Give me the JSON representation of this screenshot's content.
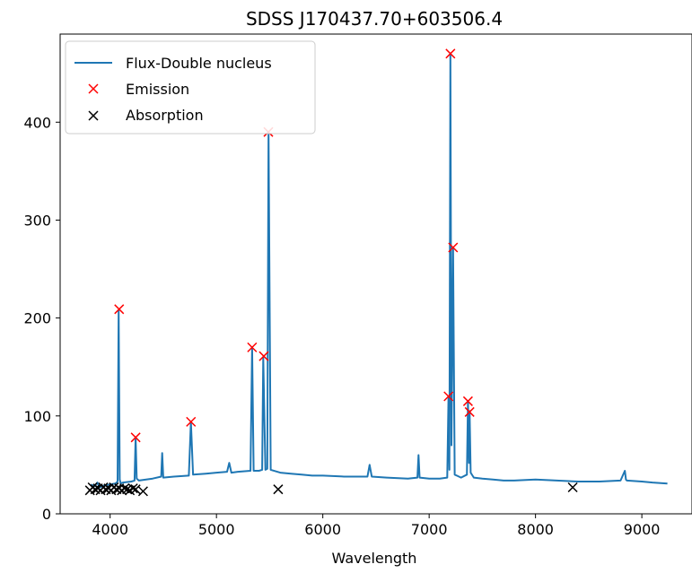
{
  "chart_data": {
    "type": "line",
    "title": "SDSS J170437.70+603506.4",
    "xlabel": "Wavelength",
    "ylabel": "",
    "xlim": [
      3530,
      9480
    ],
    "ylim": [
      0,
      490
    ],
    "xticks": [
      4000,
      5000,
      6000,
      7000,
      8000,
      9000
    ],
    "yticks": [
      0,
      100,
      200,
      300,
      400
    ],
    "legend_position": "top-left",
    "colors": {
      "flux": "#1f77b4",
      "emission": "#ff0000",
      "absorption": "#000000"
    },
    "series": [
      {
        "name": "Flux-Double nucleus",
        "kind": "line",
        "x": [
          3820,
          3850,
          3880,
          3900,
          3950,
          4000,
          4050,
          4070,
          4080,
          4090,
          4100,
          4120,
          4200,
          4230,
          4240,
          4250,
          4270,
          4400,
          4480,
          4490,
          4500,
          4600,
          4740,
          4760,
          4780,
          4900,
          5000,
          5100,
          5120,
          5140,
          5200,
          5320,
          5335,
          5350,
          5400,
          5430,
          5440,
          5460,
          5478,
          5490,
          5510,
          5600,
          5700,
          5800,
          5900,
          6000,
          6200,
          6420,
          6440,
          6460,
          6600,
          6800,
          6890,
          6900,
          6910,
          7000,
          7100,
          7170,
          7182,
          7190,
          7200,
          7210,
          7225,
          7240,
          7300,
          7355,
          7365,
          7375,
          7380,
          7390,
          7420,
          7500,
          7600,
          7700,
          7800,
          8000,
          8200,
          8400,
          8600,
          8800,
          8840,
          8850,
          8860,
          9000,
          9100,
          9240
        ],
        "y": [
          30,
          28,
          32,
          27,
          29,
          30,
          31,
          33,
          208,
          35,
          31,
          32,
          33,
          34,
          78,
          36,
          34,
          36,
          38,
          62,
          37,
          38,
          39,
          94,
          40,
          41,
          42,
          43,
          52,
          42,
          43,
          44,
          170,
          44,
          44,
          45,
          160,
          45,
          46,
          390,
          45,
          42,
          41,
          40,
          39,
          39,
          38,
          38,
          50,
          38,
          37,
          36,
          37,
          60,
          37,
          36,
          36,
          37,
          120,
          45,
          470,
          70,
          271,
          40,
          37,
          40,
          115,
          52,
          105,
          42,
          37,
          36,
          35,
          34,
          34,
          35,
          34,
          33,
          33,
          34,
          44,
          35,
          34,
          33,
          32,
          31
        ]
      },
      {
        "name": "Emission",
        "kind": "marker",
        "x": [
          4085,
          4240,
          4760,
          5335,
          5445,
          5488,
          7182,
          7200,
          7225,
          7365,
          7380
        ],
        "y": [
          209,
          78,
          94,
          170,
          161,
          390,
          120,
          470,
          272,
          115,
          104
        ]
      },
      {
        "name": "Absorption",
        "kind": "marker",
        "x": [
          3810,
          3835,
          3860,
          3885,
          3910,
          3935,
          3960,
          3985,
          4010,
          4035,
          4060,
          4085,
          4110,
          4135,
          4160,
          4185,
          4215,
          4240,
          4310,
          5580,
          8350
        ],
        "y": [
          24,
          27,
          25,
          26,
          24,
          27,
          25,
          26,
          24,
          27,
          25,
          26,
          24,
          26,
          25,
          24,
          26,
          25,
          23,
          25,
          27
        ]
      }
    ]
  }
}
